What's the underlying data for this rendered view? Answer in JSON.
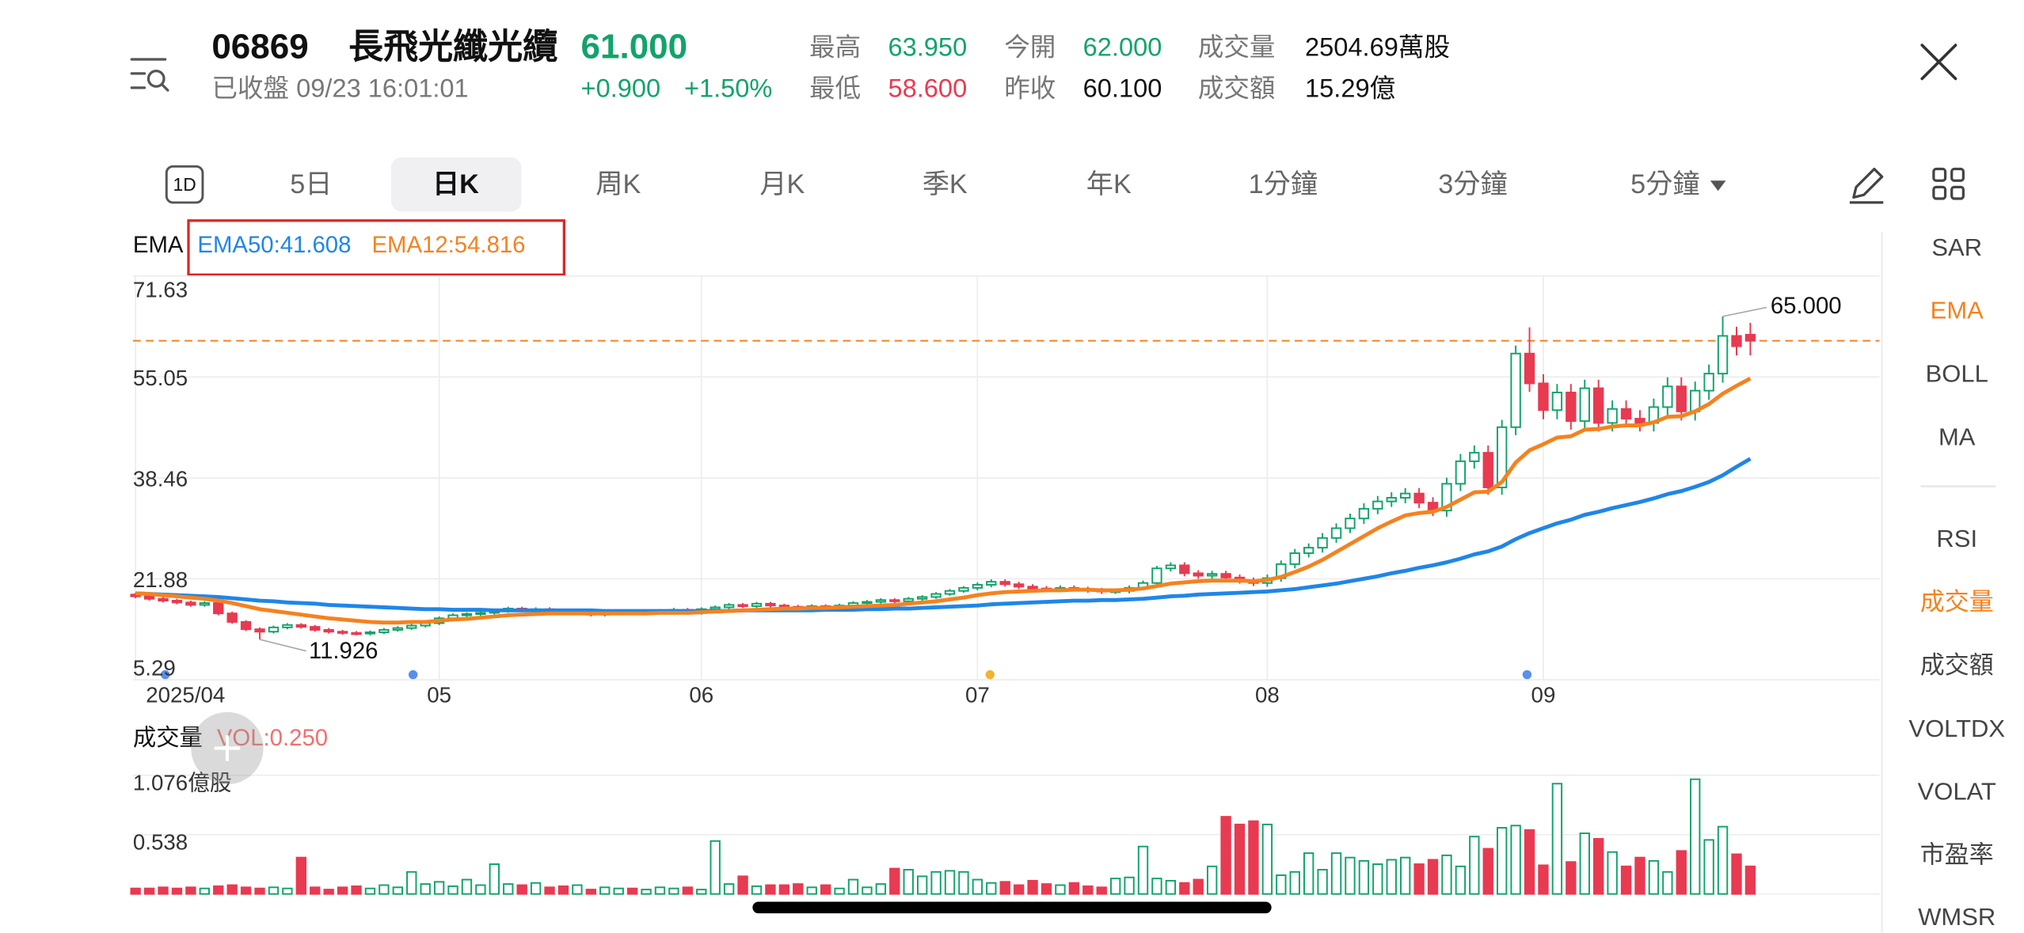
{
  "header": {
    "code": "06869",
    "name": "長飛光纖光纜",
    "price": "61.000",
    "status": "已收盤 09/23 16:01:01",
    "change": "+0.900",
    "change_pct": "+1.50%",
    "color": "#12a36b",
    "stats": [
      {
        "label": "最高",
        "value": "63.950",
        "color": "#12a36b"
      },
      {
        "label": "最低",
        "value": "58.600",
        "color": "#e83a51"
      },
      {
        "label": "今開",
        "value": "62.000",
        "color": "#12a36b"
      },
      {
        "label": "昨收",
        "value": "60.100",
        "color": "#111111"
      },
      {
        "label": "成交量",
        "value": "2504.69萬股",
        "color": "#111111"
      },
      {
        "label": "成交額",
        "value": "15.29億",
        "color": "#111111"
      }
    ]
  },
  "period_icon": "1D",
  "tabs": [
    {
      "label": "5日"
    },
    {
      "label": "日K",
      "active": true
    },
    {
      "label": "周K"
    },
    {
      "label": "月K"
    },
    {
      "label": "季K"
    },
    {
      "label": "年K"
    },
    {
      "label": "1分鐘"
    },
    {
      "label": "3分鐘"
    },
    {
      "label": "5分鐘"
    }
  ],
  "side_indicators": [
    {
      "label": "SAR"
    },
    {
      "label": "EMA",
      "active": true
    },
    {
      "label": "BOLL"
    },
    {
      "label": "MA"
    },
    {
      "label": "RSI"
    },
    {
      "label": "成交量",
      "active": true
    },
    {
      "label": "成交額"
    },
    {
      "label": "VOLTDX"
    },
    {
      "label": "VOLAT"
    },
    {
      "label": "市盈率"
    },
    {
      "label": "WMSR"
    }
  ],
  "chart_data": [
    {
      "type": "candlestick",
      "title": "EMA",
      "up_color": "#12a36b",
      "down_color": "#e83a51",
      "categories": [
        "2025/04",
        null,
        null,
        null,
        null,
        null,
        null,
        null,
        null,
        null,
        null,
        null,
        null,
        null,
        null,
        null,
        null,
        null,
        null,
        null,
        null,
        null,
        "05",
        null,
        null,
        null,
        null,
        null,
        null,
        null,
        null,
        null,
        null,
        null,
        null,
        null,
        null,
        null,
        null,
        null,
        null,
        "06",
        null,
        null,
        null,
        null,
        null,
        null,
        null,
        null,
        null,
        null,
        null,
        null,
        null,
        null,
        null,
        null,
        null,
        null,
        null,
        "07",
        null,
        null,
        null,
        null,
        null,
        null,
        null,
        null,
        null,
        null,
        null,
        null,
        null,
        null,
        null,
        null,
        null,
        null,
        null,
        null,
        "08",
        null,
        null,
        null,
        null,
        null,
        null,
        null,
        null,
        null,
        null,
        null,
        null,
        null,
        null,
        null,
        null,
        null,
        null,
        null,
        "09",
        null,
        null,
        null,
        null,
        null,
        null,
        null,
        null,
        null,
        null,
        null,
        null,
        null,
        null,
        null
      ],
      "open": [
        19.3,
        19.0,
        18.6,
        18.3,
        18.0,
        17.6,
        17.9,
        16.2,
        14.8,
        13.6,
        13.2,
        13.9,
        14.3,
        14.0,
        13.5,
        13.2,
        13.0,
        12.9,
        13.1,
        13.5,
        13.8,
        14.2,
        14.6,
        15.4,
        15.9,
        16.1,
        16.3,
        16.6,
        17.0,
        16.7,
        16.9,
        16.5,
        16.2,
        16.4,
        16.0,
        16.3,
        16.5,
        16.2,
        16.4,
        16.6,
        16.8,
        16.3,
        16.9,
        17.2,
        17.6,
        17.4,
        17.8,
        17.5,
        17.3,
        17.1,
        17.4,
        17.0,
        17.5,
        17.9,
        18.1,
        18.4,
        18.2,
        18.6,
        18.9,
        19.4,
        19.9,
        20.4,
        20.9,
        21.4,
        21.0,
        20.6,
        20.3,
        20.1,
        20.4,
        20.2,
        20.0,
        19.8,
        19.9,
        20.4,
        21.2,
        23.6,
        24.1,
        22.8,
        22.4,
        22.7,
        22.1,
        21.6,
        21.2,
        22.0,
        24.3,
        26.1,
        27.0,
        28.6,
        30.2,
        31.8,
        33.4,
        34.6,
        35.2,
        35.9,
        34.4,
        33.1,
        37.5,
        41.2,
        42.6,
        36.9,
        46.8,
        58.9,
        54.0,
        49.6,
        52.5,
        47.8,
        53.2,
        47.5,
        49.8,
        48.2,
        47.5,
        50.1,
        53.5,
        49.4,
        52.8,
        55.6,
        61.8,
        62.0
      ],
      "high": [
        19.6,
        19.3,
        18.9,
        18.6,
        18.3,
        18.2,
        18.2,
        16.5,
        15.1,
        13.9,
        14.2,
        14.6,
        14.6,
        14.3,
        13.8,
        13.5,
        13.3,
        13.4,
        13.8,
        14.1,
        14.5,
        14.9,
        15.7,
        16.2,
        16.4,
        16.6,
        16.9,
        17.3,
        17.3,
        17.2,
        17.2,
        16.8,
        16.7,
        16.7,
        16.6,
        16.8,
        16.8,
        16.7,
        16.9,
        17.1,
        17.1,
        17.2,
        17.5,
        17.9,
        17.9,
        18.1,
        18.1,
        17.8,
        17.6,
        17.7,
        17.7,
        17.8,
        18.2,
        18.4,
        18.7,
        18.7,
        18.9,
        19.2,
        19.7,
        20.2,
        20.7,
        21.3,
        21.8,
        21.8,
        21.4,
        21.0,
        20.7,
        20.8,
        20.8,
        20.6,
        20.4,
        20.3,
        20.8,
        21.6,
        24.0,
        24.6,
        24.6,
        23.3,
        23.2,
        23.2,
        22.6,
        22.1,
        22.6,
        24.9,
        26.8,
        27.7,
        29.4,
        31.0,
        32.6,
        34.3,
        35.5,
        36.1,
        36.8,
        36.8,
        35.3,
        38.5,
        42.4,
        43.8,
        43.8,
        48.0,
        60.2,
        63.2,
        55.5,
        53.9,
        53.9,
        54.6,
        54.6,
        51.2,
        51.2,
        49.6,
        51.5,
        55.0,
        55.0,
        54.3,
        57.1,
        65.0,
        63.3,
        63.95
      ],
      "low": [
        18.7,
        18.3,
        18.0,
        17.7,
        17.3,
        17.3,
        15.9,
        14.5,
        13.3,
        11.926,
        12.9,
        13.6,
        13.7,
        13.2,
        12.9,
        12.7,
        12.6,
        12.6,
        12.8,
        13.2,
        13.5,
        13.9,
        14.3,
        15.1,
        15.6,
        15.8,
        16.0,
        16.3,
        16.4,
        16.4,
        16.2,
        15.9,
        15.9,
        15.7,
        15.7,
        16.0,
        15.9,
        15.9,
        16.1,
        16.3,
        16.0,
        16.0,
        16.6,
        16.9,
        17.1,
        17.1,
        17.2,
        17.0,
        16.8,
        16.8,
        16.7,
        16.7,
        17.2,
        17.6,
        17.8,
        17.9,
        17.9,
        18.3,
        18.6,
        19.1,
        19.6,
        20.0,
        20.5,
        20.6,
        20.2,
        19.9,
        19.7,
        19.7,
        19.8,
        19.6,
        19.4,
        19.4,
        19.5,
        20.0,
        20.8,
        23.1,
        22.3,
        21.9,
        21.9,
        21.6,
        21.1,
        20.7,
        20.6,
        21.4,
        23.6,
        25.4,
        26.2,
        27.8,
        29.4,
        30.9,
        32.5,
        33.7,
        34.3,
        33.5,
        32.2,
        32.1,
        36.3,
        40.0,
        35.7,
        35.7,
        45.5,
        52.6,
        48.1,
        48.1,
        46.4,
        46.4,
        46.1,
        46.1,
        46.8,
        46.1,
        46.1,
        48.6,
        47.9,
        47.9,
        51.3,
        54.1,
        58.6,
        58.6
      ],
      "close": [
        19.0,
        18.6,
        18.3,
        18.0,
        17.6,
        17.9,
        16.2,
        14.8,
        13.6,
        13.2,
        13.9,
        14.3,
        14.0,
        13.5,
        13.2,
        13.0,
        12.9,
        13.1,
        13.5,
        13.8,
        14.2,
        14.6,
        15.4,
        15.9,
        16.1,
        16.3,
        16.6,
        17.0,
        16.7,
        16.9,
        16.5,
        16.2,
        16.4,
        16.0,
        16.3,
        16.5,
        16.2,
        16.4,
        16.6,
        16.8,
        16.3,
        16.9,
        17.2,
        17.6,
        17.4,
        17.8,
        17.5,
        17.3,
        17.1,
        17.4,
        17.0,
        17.5,
        17.9,
        18.1,
        18.4,
        18.2,
        18.6,
        18.9,
        19.4,
        19.9,
        20.4,
        20.9,
        21.4,
        21.0,
        20.6,
        20.3,
        20.1,
        20.4,
        20.2,
        20.0,
        19.8,
        19.9,
        20.4,
        21.2,
        23.6,
        24.1,
        22.8,
        22.4,
        22.7,
        22.1,
        21.6,
        21.2,
        22.0,
        24.3,
        26.1,
        27.0,
        28.6,
        30.2,
        31.8,
        33.4,
        34.6,
        35.2,
        35.9,
        34.4,
        33.1,
        37.5,
        41.2,
        42.6,
        36.9,
        46.8,
        58.9,
        54.0,
        49.6,
        52.5,
        47.8,
        53.2,
        47.5,
        49.8,
        48.2,
        47.5,
        50.1,
        53.5,
        49.4,
        52.8,
        55.6,
        61.8,
        60.1,
        61.0
      ],
      "series": [
        {
          "name": "EMA50:41.608",
          "color": "#1f86e8",
          "values": [
            19.5,
            19.4,
            19.3,
            19.2,
            19.1,
            19.0,
            18.9,
            18.7,
            18.5,
            18.3,
            18.2,
            18.0,
            17.9,
            17.8,
            17.6,
            17.5,
            17.4,
            17.3,
            17.2,
            17.1,
            17.0,
            16.9,
            16.9,
            16.8,
            16.8,
            16.8,
            16.7,
            16.7,
            16.7,
            16.7,
            16.7,
            16.7,
            16.7,
            16.7,
            16.6,
            16.6,
            16.6,
            16.6,
            16.6,
            16.6,
            16.6,
            16.6,
            16.6,
            16.6,
            16.7,
            16.7,
            16.7,
            16.7,
            16.7,
            16.7,
            16.8,
            16.8,
            16.8,
            16.9,
            16.9,
            17.0,
            17.0,
            17.1,
            17.2,
            17.3,
            17.4,
            17.5,
            17.7,
            17.8,
            17.9,
            18.0,
            18.1,
            18.2,
            18.3,
            18.3,
            18.4,
            18.4,
            18.5,
            18.6,
            18.8,
            19.0,
            19.1,
            19.3,
            19.4,
            19.5,
            19.6,
            19.7,
            19.8,
            20.0,
            20.2,
            20.5,
            20.8,
            21.1,
            21.5,
            21.9,
            22.3,
            22.8,
            23.2,
            23.7,
            24.1,
            24.6,
            25.2,
            25.9,
            26.4,
            27.2,
            28.4,
            29.4,
            30.2,
            31.0,
            31.6,
            32.4,
            32.9,
            33.5,
            34.0,
            34.5,
            35.1,
            35.8,
            36.3,
            37.0,
            37.8,
            38.9,
            40.3,
            41.608
          ]
        },
        {
          "name": "EMA12:54.816",
          "color": "#f5821f",
          "values": [
            19.5,
            19.4,
            19.2,
            19.0,
            18.8,
            18.6,
            18.3,
            17.9,
            17.4,
            16.9,
            16.6,
            16.3,
            16.0,
            15.7,
            15.4,
            15.2,
            15.0,
            14.8,
            14.7,
            14.7,
            14.8,
            14.8,
            15.0,
            15.2,
            15.3,
            15.5,
            15.7,
            15.9,
            16.0,
            16.1,
            16.2,
            16.2,
            16.2,
            16.2,
            16.2,
            16.2,
            16.2,
            16.2,
            16.3,
            16.3,
            16.3,
            16.4,
            16.5,
            16.6,
            16.7,
            16.8,
            16.9,
            17.0,
            17.0,
            17.1,
            17.1,
            17.2,
            17.3,
            17.4,
            17.5,
            17.6,
            17.8,
            18.0,
            18.2,
            18.5,
            18.8,
            19.2,
            19.5,
            19.7,
            19.8,
            19.9,
            20.0,
            20.0,
            20.1,
            20.1,
            20.0,
            20.0,
            20.1,
            20.3,
            20.7,
            21.1,
            21.3,
            21.5,
            21.6,
            21.6,
            21.6,
            21.5,
            21.7,
            22.2,
            23.0,
            23.9,
            25.0,
            26.3,
            27.6,
            28.9,
            30.2,
            31.3,
            32.3,
            32.7,
            32.9,
            33.7,
            34.9,
            36.1,
            36.2,
            37.8,
            41.0,
            43.0,
            44.0,
            45.1,
            45.3,
            46.4,
            46.5,
            46.9,
            47.1,
            47.1,
            47.6,
            48.5,
            48.6,
            49.4,
            50.6,
            52.3,
            53.6,
            54.816
          ]
        }
      ],
      "ylim": [
        5.29,
        71.63
      ],
      "yticks": [
        5.29,
        21.88,
        38.46,
        55.05,
        71.63
      ],
      "grid": true,
      "price_line": 61,
      "price_line_color": "#f5821f",
      "high_label": "65.000",
      "low_label": "11.926"
    },
    {
      "type": "bar",
      "title": "成交量",
      "subtitle": "VOL:0.250",
      "up_color": "#12a36b",
      "down_color": "#e83a51",
      "values": [
        0.05,
        0.05,
        0.06,
        0.05,
        0.06,
        0.05,
        0.07,
        0.08,
        0.06,
        0.05,
        0.06,
        0.05,
        0.33,
        0.06,
        0.04,
        0.06,
        0.07,
        0.05,
        0.08,
        0.06,
        0.2,
        0.09,
        0.11,
        0.07,
        0.13,
        0.08,
        0.27,
        0.09,
        0.08,
        0.1,
        0.06,
        0.07,
        0.08,
        0.04,
        0.06,
        0.05,
        0.05,
        0.04,
        0.06,
        0.05,
        0.06,
        0.04,
        0.48,
        0.09,
        0.16,
        0.07,
        0.08,
        0.08,
        0.09,
        0.06,
        0.08,
        0.05,
        0.13,
        0.06,
        0.09,
        0.23,
        0.22,
        0.16,
        0.2,
        0.21,
        0.2,
        0.13,
        0.1,
        0.11,
        0.08,
        0.12,
        0.09,
        0.08,
        0.1,
        0.07,
        0.06,
        0.14,
        0.15,
        0.43,
        0.14,
        0.12,
        0.1,
        0.13,
        0.25,
        0.7,
        0.63,
        0.66,
        0.63,
        0.17,
        0.2,
        0.37,
        0.22,
        0.37,
        0.33,
        0.3,
        0.27,
        0.31,
        0.33,
        0.27,
        0.31,
        0.35,
        0.25,
        0.52,
        0.41,
        0.6,
        0.62,
        0.58,
        0.26,
        1.0,
        0.29,
        0.55,
        0.5,
        0.38,
        0.25,
        0.33,
        0.3,
        0.2,
        0.39,
        1.04,
        0.49,
        0.61,
        0.36,
        0.25
      ],
      "ylim": [
        0,
        1.076
      ],
      "yticks": [
        0.538,
        {
          "value": 1.076,
          "label": "1.076億股"
        }
      ],
      "grid": true
    }
  ]
}
